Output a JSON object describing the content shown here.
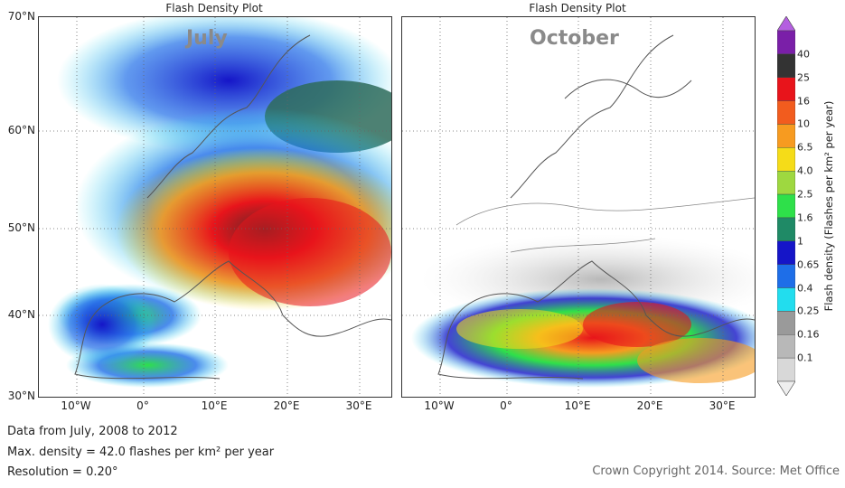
{
  "panels": [
    {
      "title": "Flash Density Plot",
      "month": "July"
    },
    {
      "title": "Flash Density Plot",
      "month": "October"
    }
  ],
  "axes": {
    "lat_ticks": [
      "70°N",
      "60°N",
      "50°N",
      "40°N",
      "30°N"
    ],
    "lon_ticks": [
      "10°W",
      "0°",
      "10°E",
      "20°E",
      "30°E"
    ],
    "lat_range": [
      30,
      70
    ],
    "lon_range": [
      -15,
      35
    ],
    "grid": "dotted"
  },
  "colorbar": {
    "title": "Flash density (Flashes per km² per year)",
    "labels": [
      "40",
      "25",
      "16",
      "10",
      "6.5",
      "4.0",
      "2.5",
      "1.6",
      "1",
      "0.65",
      "0.4",
      "0.25",
      "0.16",
      "0.1"
    ],
    "colors": [
      "#b45fe0",
      "#7a1fa8",
      "#333333",
      "#e8141b",
      "#f25c1e",
      "#f79b20",
      "#f5dc18",
      "#9ed840",
      "#2ee04a",
      "#1f8a66",
      "#1515c8",
      "#1e6ee8",
      "#22ddee",
      "#9a9a9a",
      "#b8b8b8",
      "#d8d8d8",
      "#eeeeee"
    ],
    "extend": "both"
  },
  "info": {
    "line1": "Data from July, 2008 to 2012",
    "line2": "Max. density = 42.0 flashes per km² per year",
    "line3": "Resolution = 0.20°",
    "copyright": "Crown Copyright 2014. Source: Met Office"
  }
}
